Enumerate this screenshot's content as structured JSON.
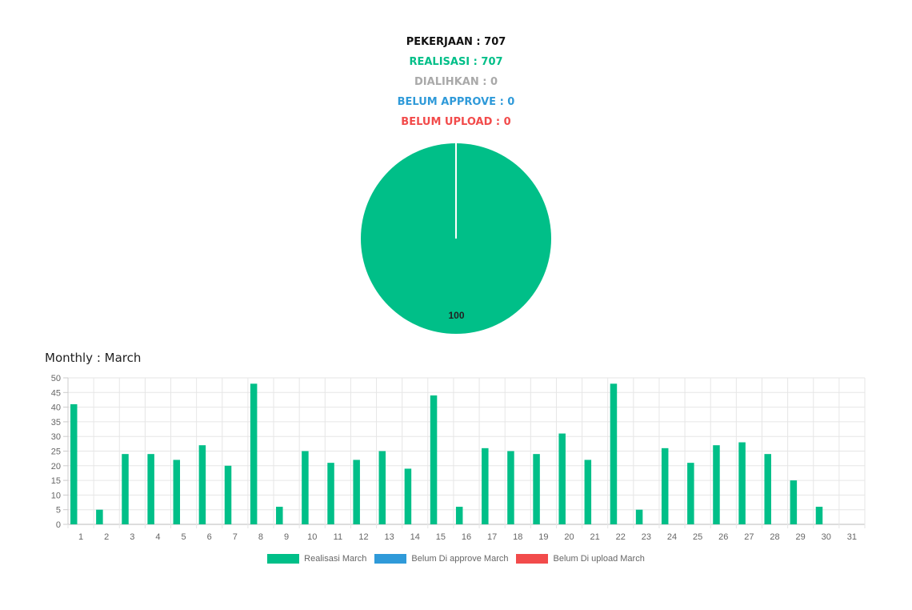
{
  "summary": {
    "pekerjaan": "PEKERJAAN : 707",
    "realisasi": "REALISASI : 707",
    "dialihkan": "DIALIHKAN : 0",
    "belum_approve": "BELUM APPROVE : 0",
    "belum_upload": "BELUM UPLOAD : 0"
  },
  "colors": {
    "realisasi": "#00bf88",
    "belum_approve": "#2f9ad9",
    "belum_upload": "#f24b4b",
    "dialihkan": "#a9a9a9"
  },
  "monthly_title": "Monthly : March",
  "chart_data": [
    {
      "type": "pie",
      "categories": [
        "Realisasi",
        "Dialihkan",
        "Belum Approve",
        "Belum Upload"
      ],
      "values": [
        100,
        0,
        0,
        0
      ],
      "data_labels": [
        "100",
        "",
        "",
        ""
      ]
    },
    {
      "type": "bar",
      "categories": [
        "1",
        "2",
        "3",
        "4",
        "5",
        "6",
        "7",
        "8",
        "9",
        "10",
        "11",
        "12",
        "13",
        "14",
        "15",
        "16",
        "17",
        "18",
        "19",
        "20",
        "21",
        "22",
        "23",
        "24",
        "25",
        "26",
        "27",
        "28",
        "29",
        "30",
        "31"
      ],
      "series": [
        {
          "name": "Realisasi March",
          "values": [
            41,
            5,
            24,
            24,
            22,
            27,
            20,
            48,
            6,
            25,
            21,
            22,
            25,
            19,
            44,
            6,
            26,
            25,
            24,
            31,
            22,
            48,
            5,
            26,
            21,
            27,
            28,
            24,
            15,
            6,
            0
          ]
        },
        {
          "name": "Belum Di approve March",
          "values": [
            0,
            0,
            0,
            0,
            0,
            0,
            0,
            0,
            0,
            0,
            0,
            0,
            0,
            0,
            0,
            0,
            0,
            0,
            0,
            0,
            0,
            0,
            0,
            0,
            0,
            0,
            0,
            0,
            0,
            0,
            0
          ]
        },
        {
          "name": "Belum Di upload March",
          "values": [
            0,
            0,
            0,
            0,
            0,
            0,
            0,
            0,
            0,
            0,
            0,
            0,
            0,
            0,
            0,
            0,
            0,
            0,
            0,
            0,
            0,
            0,
            0,
            0,
            0,
            0,
            0,
            0,
            0,
            0,
            0
          ]
        }
      ],
      "yticks": [
        "0",
        "5",
        "10",
        "15",
        "20",
        "25",
        "30",
        "35",
        "40",
        "45",
        "50"
      ],
      "ylim": [
        0,
        50
      ],
      "grid": true,
      "legend": "bottom-center"
    }
  ]
}
